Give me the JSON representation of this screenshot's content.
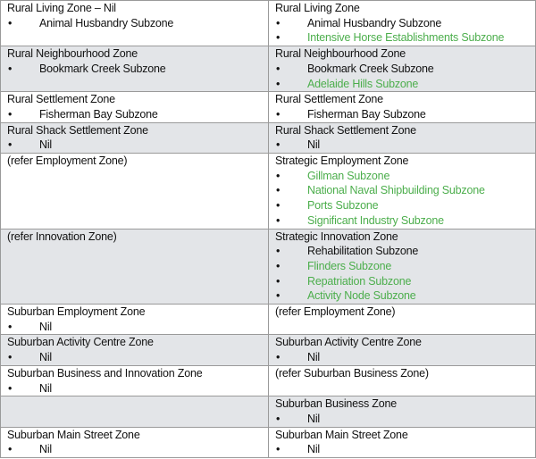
{
  "table": {
    "rows": [
      {
        "cells": [
          {
            "heading": "Rural Living Zone – Nil",
            "items": [
              {
                "text": "Animal Husbandry Subzone",
                "color": "#111111"
              }
            ]
          },
          {
            "heading": "Rural Living Zone",
            "items": [
              {
                "text": "Animal Husbandry Subzone",
                "color": "#111111"
              },
              {
                "text": "Intensive Horse Establishments Subzone",
                "color": "#4cae4c"
              }
            ]
          }
        ]
      },
      {
        "cells": [
          {
            "heading": "Rural Neighbourhood Zone",
            "items": [
              {
                "text": "Bookmark Creek Subzone",
                "color": "#111111"
              }
            ]
          },
          {
            "heading": "Rural Neighbourhood Zone",
            "items": [
              {
                "text": "Bookmark Creek Subzone",
                "color": "#111111"
              },
              {
                "text": "Adelaide Hills Subzone",
                "color": "#4cae4c"
              }
            ]
          }
        ]
      },
      {
        "cells": [
          {
            "heading": "Rural Settlement Zone",
            "items": [
              {
                "text": "Fisherman Bay Subzone",
                "color": "#111111"
              }
            ]
          },
          {
            "heading": "Rural Settlement Zone",
            "items": [
              {
                "text": "Fisherman Bay Subzone",
                "color": "#111111"
              }
            ]
          }
        ]
      },
      {
        "cells": [
          {
            "heading": "Rural Shack Settlement Zone",
            "items": [
              {
                "text": "Nil",
                "color": "#111111"
              }
            ]
          },
          {
            "heading": "Rural Shack Settlement Zone",
            "items": [
              {
                "text": "Nil",
                "color": "#111111"
              }
            ]
          }
        ]
      },
      {
        "cells": [
          {
            "heading": "(refer Employment Zone)",
            "items": []
          },
          {
            "heading": "Strategic Employment Zone",
            "items": [
              {
                "text": "Gillman Subzone",
                "color": "#4cae4c"
              },
              {
                "text": "National Naval Shipbuilding Subzone",
                "color": "#4cae4c"
              },
              {
                "text": "Ports Subzone",
                "color": "#4cae4c"
              },
              {
                "text": "Significant Industry Subzone",
                "color": "#4cae4c"
              }
            ]
          }
        ]
      },
      {
        "cells": [
          {
            "heading": "(refer Innovation Zone)",
            "items": []
          },
          {
            "heading": "Strategic Innovation Zone",
            "items": [
              {
                "text": "Rehabilitation Subzone",
                "color": "#111111"
              },
              {
                "text": "Flinders Subzone",
                "color": "#4cae4c"
              },
              {
                "text": "Repatriation Subzone",
                "color": "#4cae4c"
              },
              {
                "text": "Activity Node Subzone",
                "color": "#4cae4c"
              }
            ]
          }
        ]
      },
      {
        "cells": [
          {
            "heading": "Suburban Employment Zone",
            "items": [
              {
                "text": "Nil",
                "color": "#111111"
              }
            ]
          },
          {
            "heading": "(refer Employment Zone)",
            "items": []
          }
        ]
      },
      {
        "cells": [
          {
            "heading": "Suburban Activity Centre Zone",
            "items": [
              {
                "text": "Nil",
                "color": "#111111"
              }
            ]
          },
          {
            "heading": "Suburban Activity Centre Zone",
            "items": [
              {
                "text": "Nil",
                "color": "#111111"
              }
            ]
          }
        ]
      },
      {
        "cells": [
          {
            "heading": "Suburban Business and Innovation Zone",
            "items": [
              {
                "text": "Nil",
                "color": "#111111"
              }
            ]
          },
          {
            "heading": "(refer Suburban Business Zone)",
            "items": []
          }
        ]
      },
      {
        "cells": [
          {
            "items": []
          },
          {
            "heading": "Suburban Business Zone",
            "items": [
              {
                "text": "Nil",
                "color": "#111111"
              }
            ]
          }
        ]
      },
      {
        "cells": [
          {
            "heading": "Suburban Main Street Zone",
            "items": [
              {
                "text": "Nil",
                "color": "#111111"
              }
            ]
          },
          {
            "heading": "Suburban Main Street Zone",
            "items": [
              {
                "text": "Nil",
                "color": "#111111"
              }
            ]
          }
        ]
      }
    ]
  }
}
